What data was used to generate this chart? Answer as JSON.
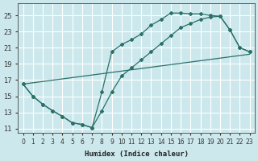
{
  "xlabel": "Humidex (Indice chaleur)",
  "bg_color": "#cce8ed",
  "grid_color": "#ffffff",
  "line_color": "#2a7068",
  "xlim": [
    -0.5,
    23.5
  ],
  "ylim": [
    10.5,
    26.5
  ],
  "xticks": [
    0,
    1,
    2,
    3,
    4,
    5,
    6,
    7,
    8,
    9,
    10,
    11,
    12,
    13,
    14,
    15,
    16,
    17,
    18,
    19,
    20,
    21,
    22,
    23
  ],
  "yticks": [
    11,
    13,
    15,
    17,
    19,
    21,
    23,
    25
  ],
  "line1_x": [
    0,
    1,
    2,
    3,
    4,
    5,
    6,
    7,
    8,
    9,
    10,
    11,
    12,
    13,
    14,
    15,
    16,
    17,
    18,
    19,
    20,
    21,
    22,
    23
  ],
  "line1_y": [
    16.5,
    15.0,
    14.0,
    13.2,
    12.5,
    11.7,
    11.5,
    11.1,
    15.5,
    20.5,
    21.4,
    22.0,
    22.7,
    23.8,
    24.5,
    25.3,
    25.3,
    25.2,
    25.2,
    25.0,
    24.9,
    23.2,
    21.0,
    20.5
  ],
  "line2_x": [
    0,
    1,
    2,
    3,
    4,
    5,
    6,
    7,
    8,
    9,
    10,
    11,
    12,
    13,
    14,
    15,
    16,
    17,
    18,
    19,
    20,
    21,
    22,
    23
  ],
  "line2_y": [
    16.5,
    15.0,
    14.0,
    13.2,
    12.5,
    11.7,
    11.5,
    11.1,
    13.2,
    15.5,
    17.5,
    18.5,
    19.5,
    20.5,
    21.5,
    22.5,
    23.5,
    24.0,
    24.5,
    24.8,
    24.9,
    23.2,
    21.0,
    20.5
  ],
  "line3_x": [
    0,
    23
  ],
  "line3_y": [
    16.5,
    20.2
  ]
}
